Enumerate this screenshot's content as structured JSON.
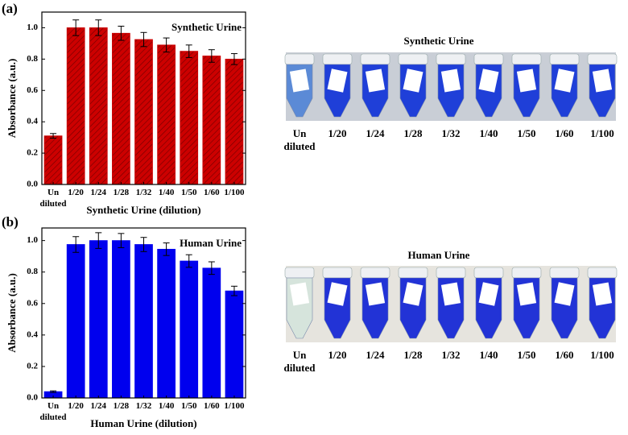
{
  "panel_labels": [
    "(a)",
    "(b)"
  ],
  "chart_data": [
    {
      "type": "bar",
      "annotation": "Synthetic Urine",
      "x_label": "Synthetic Urine (dilution)",
      "y_label": "Absorbance (a.u.)",
      "categories": [
        "Un diluted",
        "1/20",
        "1/24",
        "1/28",
        "1/32",
        "1/40",
        "1/50",
        "1/60",
        "1/100"
      ],
      "series": [
        {
          "color": "#cc0000",
          "hatch": true,
          "values": [
            0.31,
            1.0,
            1.0,
            0.965,
            0.925,
            0.89,
            0.85,
            0.82,
            0.8
          ],
          "errors": [
            0.015,
            0.05,
            0.05,
            0.045,
            0.045,
            0.045,
            0.04,
            0.04,
            0.035
          ]
        }
      ],
      "ylim": [
        0,
        1.1
      ],
      "yticks": [
        {
          "value": 0,
          "label": "0.0"
        },
        0.2,
        0.4,
        0.6,
        0.8,
        {
          "value": 1,
          "label": "1.0"
        }
      ]
    },
    {
      "type": "bar",
      "annotation": "Human Urine",
      "x_label": "Human Urine (dilution)",
      "y_label": "Absorbance (a.u.)",
      "categories": [
        "Un diluted",
        "1/20",
        "1/24",
        "1/28",
        "1/32",
        "1/40",
        "1/50",
        "1/60",
        "1/100"
      ],
      "series": [
        {
          "color": "#0000ee",
          "hatch": false,
          "values": [
            0.04,
            0.975,
            1.0,
            1.0,
            0.975,
            0.945,
            0.87,
            0.825,
            0.68
          ],
          "errors": [
            0.005,
            0.05,
            0.05,
            0.045,
            0.045,
            0.04,
            0.04,
            0.04,
            0.03
          ]
        }
      ],
      "ylim": [
        0,
        1.08
      ],
      "yticks": [
        {
          "value": 0,
          "label": "0.0"
        },
        0.2,
        0.4,
        0.6,
        0.8,
        {
          "value": 1,
          "label": "1.0"
        }
      ]
    }
  ],
  "photos": [
    {
      "title": "Synthetic Urine",
      "labels": [
        "Un diluted",
        "1/20",
        "1/24",
        "1/28",
        "1/32",
        "1/40",
        "1/50",
        "1/60",
        "1/100"
      ]
    },
    {
      "title": "Human Urine",
      "labels": [
        "Un diluted",
        "1/20",
        "1/24",
        "1/28",
        "1/32",
        "1/40",
        "1/50",
        "1/60",
        "1/100"
      ]
    }
  ]
}
